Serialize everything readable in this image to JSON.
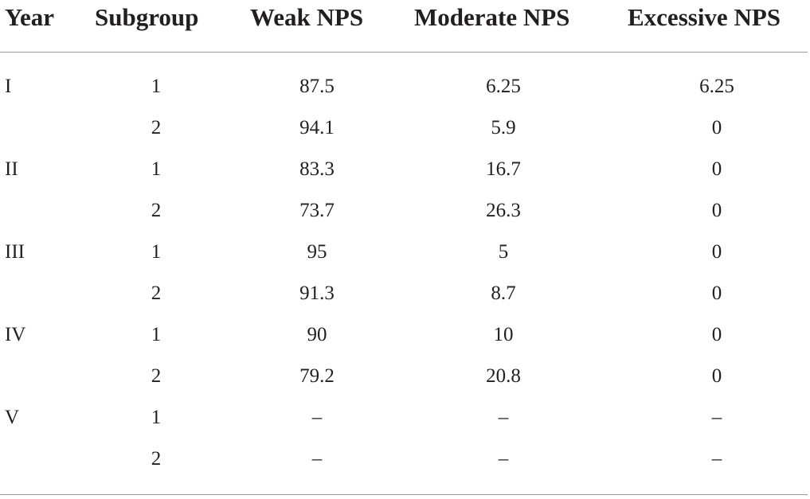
{
  "table": {
    "headers": {
      "year": "Year",
      "subgroup": "Subgroup",
      "weak": "Weak NPS",
      "moderate": "Moderate NPS",
      "excessive": "Excessive NPS"
    },
    "rows": [
      {
        "year": "I",
        "subgroup": "1",
        "weak": "87.5",
        "moderate": "6.25",
        "excessive": "6.25"
      },
      {
        "year": "",
        "subgroup": "2",
        "weak": "94.1",
        "moderate": "5.9",
        "excessive": "0"
      },
      {
        "year": "II",
        "subgroup": "1",
        "weak": "83.3",
        "moderate": "16.7",
        "excessive": "0"
      },
      {
        "year": "",
        "subgroup": "2",
        "weak": "73.7",
        "moderate": "26.3",
        "excessive": "0"
      },
      {
        "year": "III",
        "subgroup": "1",
        "weak": "95",
        "moderate": "5",
        "excessive": "0"
      },
      {
        "year": "",
        "subgroup": "2",
        "weak": "91.3",
        "moderate": "8.7",
        "excessive": "0"
      },
      {
        "year": "IV",
        "subgroup": "1",
        "weak": "90",
        "moderate": "10",
        "excessive": "0"
      },
      {
        "year": "",
        "subgroup": "2",
        "weak": "79.2",
        "moderate": "20.8",
        "excessive": "0"
      },
      {
        "year": "V",
        "subgroup": "1",
        "weak": "–",
        "moderate": "–",
        "excessive": "–"
      },
      {
        "year": "",
        "subgroup": "2",
        "weak": "–",
        "moderate": "–",
        "excessive": "–"
      }
    ]
  }
}
